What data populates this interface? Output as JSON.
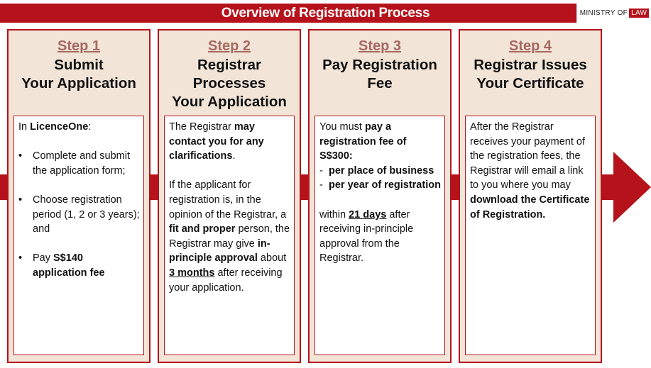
{
  "header": {
    "title": "Overview of Registration Process",
    "logo_prefix": "MINISTRY OF",
    "logo_highlight": "LAW"
  },
  "colors": {
    "accent": "#b5121b",
    "card_bg": "#f2e5d8",
    "step_label": "#a7685f"
  },
  "steps": [
    {
      "label": "Step 1",
      "title_lines": [
        "Submit",
        "Your Application"
      ],
      "intro_prefix": "In ",
      "intro_bold": "LicenceOne",
      "intro_suffix": ":",
      "bullet_mark": "•",
      "bullet1": "Complete and submit the application form;",
      "bullet2": "Choose registration period (1, 2 or 3 years); and",
      "bullet3_pre": "Pay ",
      "bullet3_bold": "S$140 application fee"
    },
    {
      "label": "Step 2",
      "title_lines": [
        "Registrar",
        "Processes",
        "Your Application"
      ],
      "p1_pre": "The Registrar ",
      "p1_bold": "may contact you for any clarifications",
      "p1_post": ".",
      "p2_a": "If the applicant for registration is, in the opinion of the Registrar, a ",
      "p2_b": "fit and proper",
      "p2_c": " person, the Registrar may give ",
      "p2_d": "in-principle approval",
      "p2_e": " about ",
      "p2_f": "3 months",
      "p2_g": " after receiving your application."
    },
    {
      "label": "Step 3",
      "title_lines": [
        "Pay Registration",
        "Fee"
      ],
      "p1_pre": "You must ",
      "p1_bold": "pay a registration fee of S$300:",
      "dash_mark": "-",
      "dash1": "per place of business",
      "dash2": "per year of registration",
      "p2_pre": "within ",
      "p2_bold": "21 days",
      "p2_post": " after receiving in-principle approval from the Registrar."
    },
    {
      "label": "Step 4",
      "title_lines": [
        "Registrar Issues",
        "Your Certificate"
      ],
      "p1_pre": "After the Registrar receives your payment of the registration fees, the Registrar will email a link to you where you may ",
      "p1_bold": "download the Certificate of Registration."
    }
  ]
}
